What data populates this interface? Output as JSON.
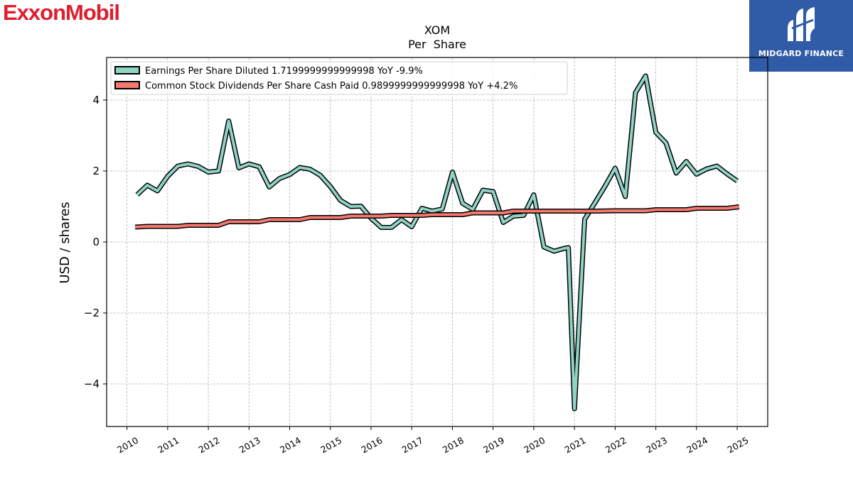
{
  "logos": {
    "company": "ExxonMobil",
    "partner": "MIDGARD FINANCE"
  },
  "chart_data": {
    "type": "line",
    "title": "XOM",
    "subtitle": "Per  Share",
    "xlabel": "",
    "ylabel": "USD / shares",
    "xlim": [
      2009.5,
      2025.75
    ],
    "ylim": [
      -5.2,
      5.2
    ],
    "yticks": [
      -4,
      -2,
      0,
      2,
      4
    ],
    "xticks": [
      2010,
      2011,
      2012,
      2013,
      2014,
      2015,
      2016,
      2017,
      2018,
      2019,
      2020,
      2021,
      2022,
      2023,
      2024,
      2025
    ],
    "grid": true,
    "legend_position": "top-left",
    "colors": {
      "eps": "#8fd3c5",
      "dividends": "#f5786f",
      "outline": "#000000",
      "grid": "#b0b0b0"
    },
    "series": [
      {
        "name": "Earnings Per Share Diluted  1.7199999999999998 YoY -9.9%",
        "color": "#8fd3c5",
        "points": [
          [
            2010.25,
            1.33
          ],
          [
            2010.5,
            1.6
          ],
          [
            2010.75,
            1.44
          ],
          [
            2011.0,
            1.85
          ],
          [
            2011.25,
            2.14
          ],
          [
            2011.5,
            2.2
          ],
          [
            2011.75,
            2.13
          ],
          [
            2012.0,
            1.97
          ],
          [
            2012.25,
            2.0
          ],
          [
            2012.5,
            3.41
          ],
          [
            2012.75,
            2.09
          ],
          [
            2013.0,
            2.2
          ],
          [
            2013.25,
            2.12
          ],
          [
            2013.5,
            1.55
          ],
          [
            2013.75,
            1.79
          ],
          [
            2014.0,
            1.9
          ],
          [
            2014.25,
            2.1
          ],
          [
            2014.5,
            2.05
          ],
          [
            2014.75,
            1.88
          ],
          [
            2015.0,
            1.56
          ],
          [
            2015.25,
            1.17
          ],
          [
            2015.5,
            1.0
          ],
          [
            2015.75,
            1.01
          ],
          [
            2016.0,
            0.67
          ],
          [
            2016.25,
            0.41
          ],
          [
            2016.5,
            0.41
          ],
          [
            2016.75,
            0.63
          ],
          [
            2017.0,
            0.43
          ],
          [
            2017.25,
            0.95
          ],
          [
            2017.5,
            0.87
          ],
          [
            2017.75,
            0.93
          ],
          [
            2018.0,
            1.97
          ],
          [
            2018.25,
            1.09
          ],
          [
            2018.5,
            0.92
          ],
          [
            2018.75,
            1.46
          ],
          [
            2019.0,
            1.42
          ],
          [
            2019.25,
            0.55
          ],
          [
            2019.5,
            0.73
          ],
          [
            2019.75,
            0.75
          ],
          [
            2020.0,
            1.33
          ],
          [
            2020.25,
            -0.14
          ],
          [
            2020.5,
            -0.26
          ],
          [
            2020.75,
            -0.18
          ],
          [
            2020.85,
            -0.16
          ],
          [
            2021.0,
            -4.7
          ],
          [
            2021.25,
            0.64
          ],
          [
            2021.5,
            1.1
          ],
          [
            2021.75,
            1.57
          ],
          [
            2022.0,
            2.08
          ],
          [
            2022.25,
            1.28
          ],
          [
            2022.5,
            4.21
          ],
          [
            2022.75,
            4.68
          ],
          [
            2023.0,
            3.09
          ],
          [
            2023.25,
            2.79
          ],
          [
            2023.5,
            1.94
          ],
          [
            2023.75,
            2.27
          ],
          [
            2024.0,
            1.91
          ],
          [
            2024.25,
            2.06
          ],
          [
            2024.5,
            2.14
          ],
          [
            2024.75,
            1.92
          ],
          [
            2025.0,
            1.72
          ]
        ]
      },
      {
        "name": "Common Stock Dividends Per Share Cash Paid  0.9899999999999998 YoY +4.2%",
        "color": "#f5786f",
        "points": [
          [
            2010.2,
            0.42
          ],
          [
            2010.5,
            0.44
          ],
          [
            2011.0,
            0.44
          ],
          [
            2011.25,
            0.44
          ],
          [
            2011.5,
            0.47
          ],
          [
            2012.0,
            0.47
          ],
          [
            2012.25,
            0.47
          ],
          [
            2012.5,
            0.57
          ],
          [
            2013.0,
            0.57
          ],
          [
            2013.25,
            0.57
          ],
          [
            2013.5,
            0.63
          ],
          [
            2014.0,
            0.63
          ],
          [
            2014.25,
            0.63
          ],
          [
            2014.5,
            0.69
          ],
          [
            2015.0,
            0.69
          ],
          [
            2015.25,
            0.69
          ],
          [
            2015.5,
            0.73
          ],
          [
            2016.0,
            0.73
          ],
          [
            2016.25,
            0.73
          ],
          [
            2016.5,
            0.75
          ],
          [
            2017.0,
            0.75
          ],
          [
            2017.25,
            0.75
          ],
          [
            2017.5,
            0.77
          ],
          [
            2018.0,
            0.77
          ],
          [
            2018.25,
            0.77
          ],
          [
            2018.5,
            0.82
          ],
          [
            2019.0,
            0.82
          ],
          [
            2019.25,
            0.82
          ],
          [
            2019.5,
            0.87
          ],
          [
            2020.0,
            0.87
          ],
          [
            2020.5,
            0.87
          ],
          [
            2021.0,
            0.87
          ],
          [
            2021.5,
            0.87
          ],
          [
            2022.0,
            0.88
          ],
          [
            2022.5,
            0.88
          ],
          [
            2022.75,
            0.88
          ],
          [
            2023.0,
            0.91
          ],
          [
            2023.5,
            0.91
          ],
          [
            2023.75,
            0.91
          ],
          [
            2024.0,
            0.95
          ],
          [
            2024.5,
            0.95
          ],
          [
            2024.75,
            0.95
          ],
          [
            2025.05,
            0.99
          ]
        ]
      }
    ]
  }
}
